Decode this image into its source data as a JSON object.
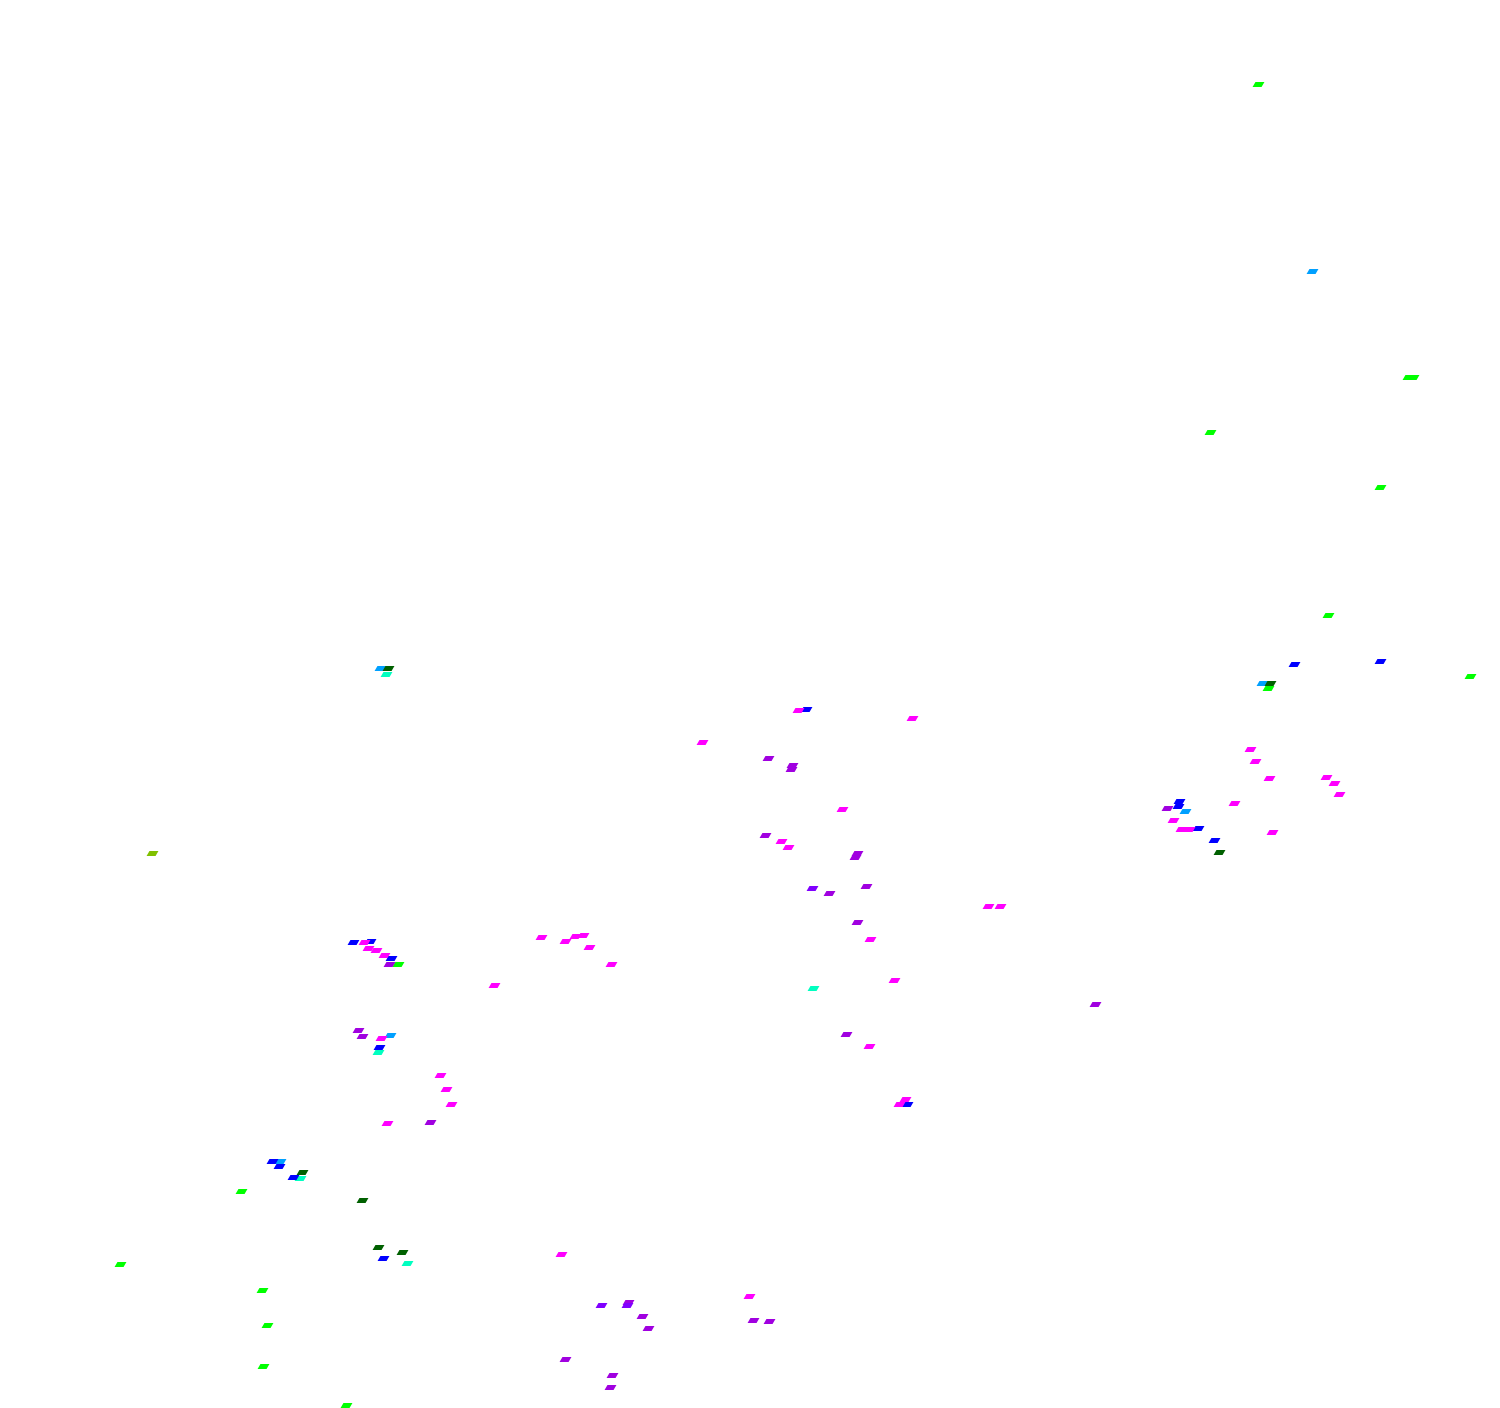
{
  "background": "#ffffff",
  "mark_colors": {
    "green": "#00ff00",
    "light_blue": "#00a0ff",
    "dark_green": "#006000",
    "cyan": "#00ffc0",
    "blue": "#0000ff",
    "magenta": "#ff00ff",
    "purple": "#a000e0",
    "violet": "#8000ff",
    "olive": "#80c000"
  }
}
